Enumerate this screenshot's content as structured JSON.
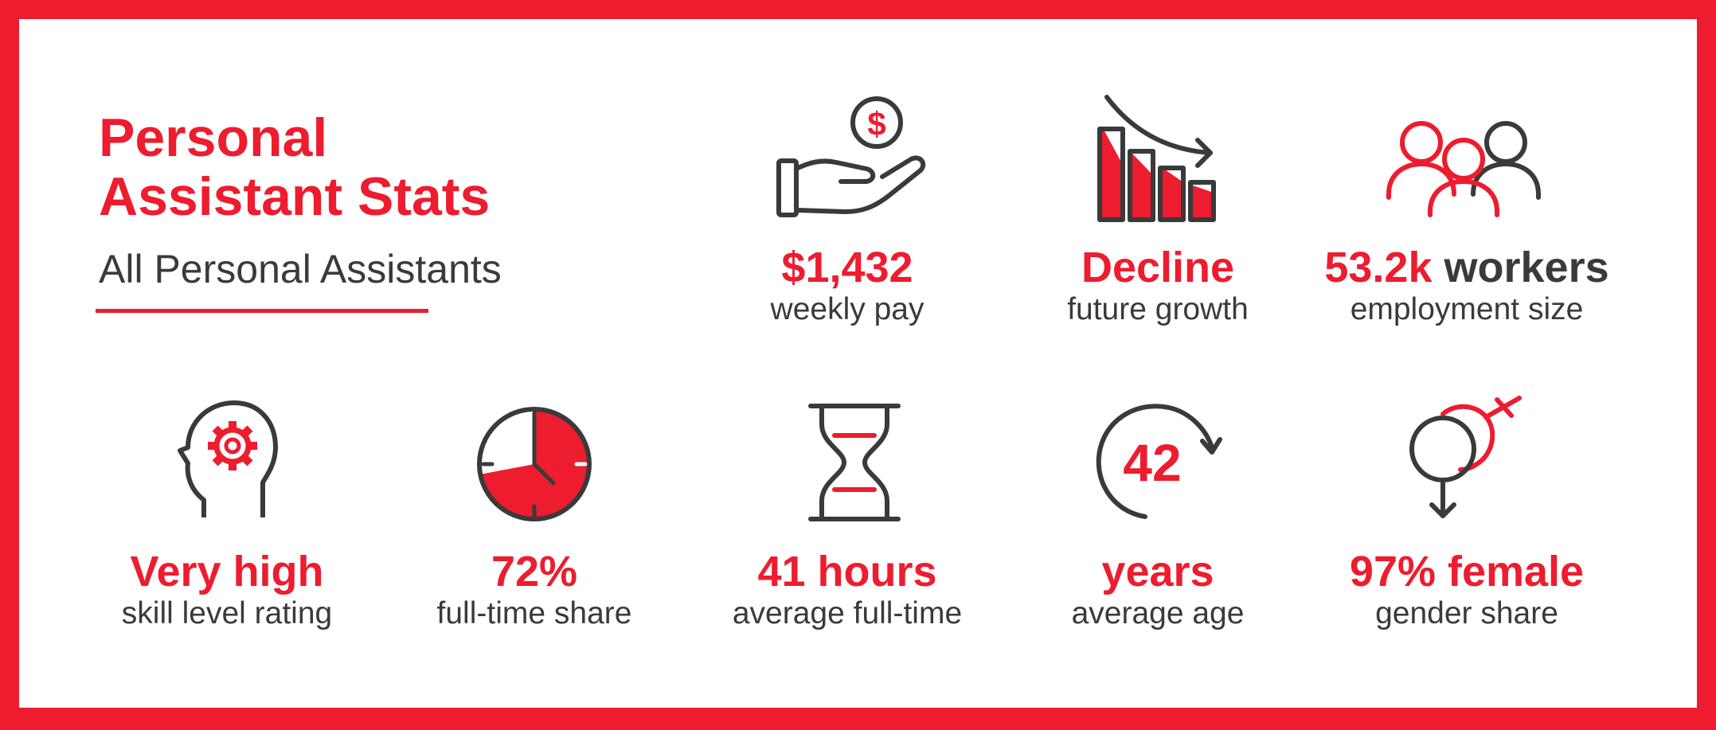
{
  "colors": {
    "accent": "#ed1c2e",
    "dark": "#3a3a3a",
    "background": "#ffffff"
  },
  "header": {
    "title_line1": "Personal",
    "title_line2": "Assistant Stats",
    "subtitle": "All Personal Assistants"
  },
  "stats": {
    "pay": {
      "icon": "hand-dollar-icon",
      "value": "$1,432",
      "label": "weekly pay"
    },
    "growth": {
      "icon": "declining-bar-chart-icon",
      "value": "Decline",
      "label": "future growth"
    },
    "employment": {
      "icon": "people-group-icon",
      "value": "53.2k",
      "value_suffix": "workers",
      "label": "employment size"
    },
    "skill": {
      "icon": "head-gear-icon",
      "value": "Very high",
      "label": "skill level rating"
    },
    "fulltime": {
      "icon": "clock-pie-icon",
      "value": "72%",
      "label": "full-time share",
      "fill_fraction": 0.72
    },
    "hours": {
      "icon": "hourglass-icon",
      "value": "41 hours",
      "label": "average full-time"
    },
    "age": {
      "icon": "age-cycle-icon",
      "icon_number": "42",
      "value": "years",
      "label": "average age"
    },
    "gender": {
      "icon": "gender-symbols-icon",
      "value": "97% female",
      "label": "gender share"
    }
  }
}
